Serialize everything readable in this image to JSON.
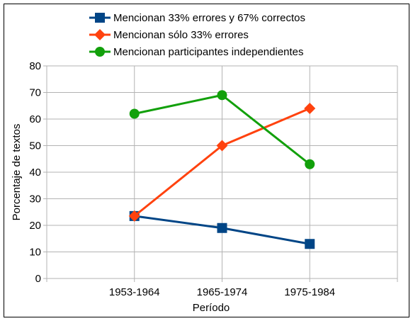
{
  "chart_data": {
    "type": "line",
    "title": "",
    "xlabel": "Período",
    "ylabel": "Porcentaje de textos",
    "categories": [
      "1953-1964",
      "1965-1974",
      "1975-1984"
    ],
    "ylim": [
      0,
      80
    ],
    "yticks": [
      0,
      10,
      20,
      30,
      40,
      50,
      60,
      70,
      80
    ],
    "grid": "horizontal",
    "legend_position": "top",
    "series": [
      {
        "name": "Mencionan 33% errores y 67% correctos",
        "values": [
          23.5,
          19,
          13
        ],
        "color": "#004586",
        "marker": "square"
      },
      {
        "name": "Mencionan sólo 33% errores",
        "values": [
          23.5,
          50,
          64
        ],
        "color": "#ff420e",
        "marker": "diamond"
      },
      {
        "name": "Mencionan participantes independientes",
        "values": [
          62,
          69,
          43
        ],
        "color": "#12a00b",
        "marker": "circle"
      }
    ]
  }
}
